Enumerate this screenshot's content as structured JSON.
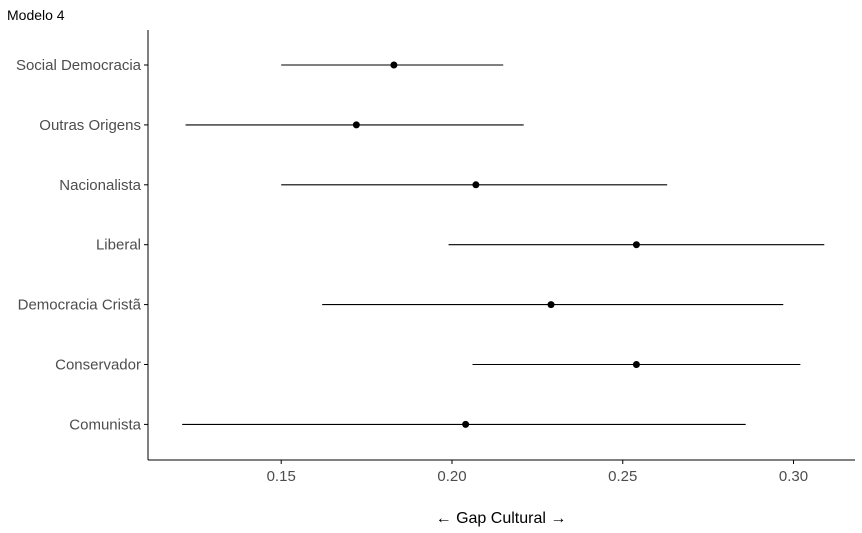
{
  "chart_data": {
    "type": "forest",
    "title": "Modelo 4",
    "xlabel": "← Gap Cultural →",
    "ylabel": "",
    "xlim": [
      0.111,
      0.318
    ],
    "xticks": [
      0.15,
      0.2,
      0.25,
      0.3
    ],
    "xtick_labels": [
      "0.15",
      "0.20",
      "0.25",
      "0.30"
    ],
    "grid": false,
    "categories": [
      "Social Democracia",
      "Outras Origens",
      "Nacionalista",
      "Liberal",
      "Democracia Cristã",
      "Conservador",
      "Comunista"
    ],
    "estimates": [
      0.183,
      0.172,
      0.207,
      0.254,
      0.229,
      0.254,
      0.204
    ],
    "ci_low": [
      0.15,
      0.122,
      0.15,
      0.199,
      0.162,
      0.206,
      0.121
    ],
    "ci_high": [
      0.215,
      0.221,
      0.263,
      0.309,
      0.297,
      0.302,
      0.286
    ],
    "point_color": "#000000",
    "line_color": "#000000",
    "axis_color": "#000000",
    "label_color": "#4d4d4d"
  }
}
